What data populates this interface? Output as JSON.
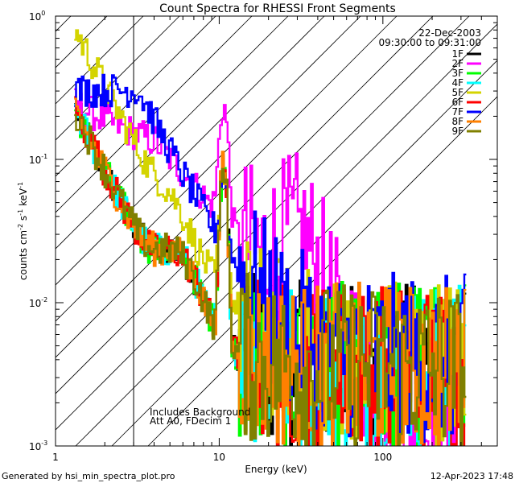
{
  "chart_data": {
    "type": "line",
    "title": "Count Spectra for RHESSI Front Segments",
    "xlabel": "Energy (keV)",
    "ylabel_main": "counts cm",
    "ylabel_parts": [
      "-2",
      " s",
      "-1",
      " keV",
      "-1"
    ],
    "xscale": "log",
    "yscale": "log",
    "xlim": [
      1,
      500
    ],
    "ylim": [
      0.001,
      1
    ],
    "x_ticks": [
      {
        "value": 1,
        "label": "1"
      },
      {
        "value": 10,
        "label": "10"
      },
      {
        "value": 100,
        "label": "100"
      }
    ],
    "y_ticks": [
      {
        "value": 1,
        "base": "10",
        "exp": "0"
      },
      {
        "value": 0.1,
        "base": "10",
        "exp": "-1"
      },
      {
        "value": 0.01,
        "base": "10",
        "exp": "-2"
      },
      {
        "value": 0.001,
        "base": "10",
        "exp": "-3"
      }
    ],
    "date": "22-Dec-2003",
    "time_range": "09:30:00 to 09:31:00",
    "annotations": [
      "Includes Background",
      "Att A0, FDecim 1"
    ],
    "shaded_region_xmax": 3,
    "legend_position": "top-right",
    "series": [
      {
        "name": "1F",
        "color": "#000000"
      },
      {
        "name": "2F",
        "color": "#ff00ff"
      },
      {
        "name": "3F",
        "color": "#00ff00"
      },
      {
        "name": "4F",
        "color": "#00ffff"
      },
      {
        "name": "5F",
        "color": "#d4d400"
      },
      {
        "name": "6F",
        "color": "#ff0000"
      },
      {
        "name": "7F",
        "color": "#0000ff"
      },
      {
        "name": "8F",
        "color": "#ff8000"
      },
      {
        "name": "9F",
        "color": "#808000"
      }
    ]
  },
  "footer": {
    "left": "Generated by hsi_min_spectra_plot.pro",
    "right": "12-Apr-2023 17:48"
  }
}
